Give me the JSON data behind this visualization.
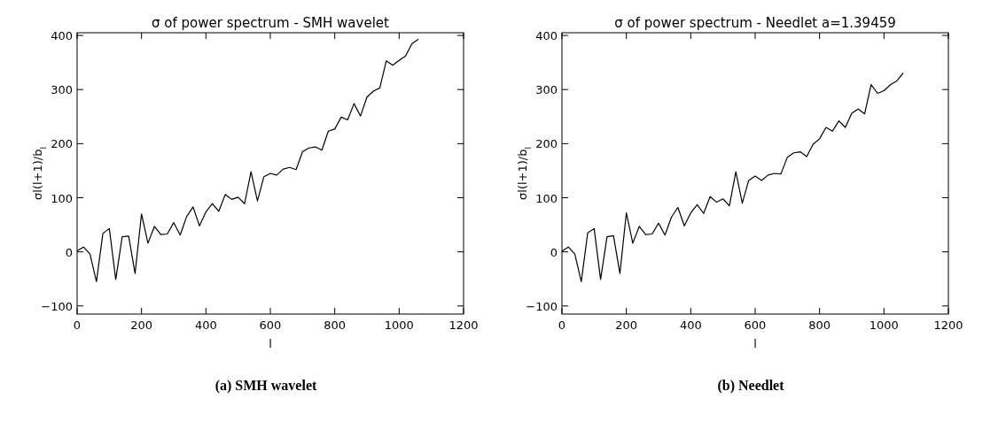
{
  "chart_data": [
    {
      "type": "line",
      "title": "σ of power spectrum - SMH wavelet",
      "xlabel": "l",
      "ylabel": "σl(l+1)/b$_{l}$",
      "annotations": [
        "(a) SMH wavelet"
      ],
      "x": [
        0,
        20,
        40,
        60,
        80,
        100,
        120,
        140,
        160,
        180,
        200,
        220,
        240,
        260,
        280,
        300,
        320,
        340,
        360,
        380,
        400,
        420,
        440,
        460,
        480,
        500,
        520,
        540,
        560,
        580,
        600,
        620,
        640,
        660,
        680,
        700,
        720,
        740,
        760,
        780,
        800,
        820,
        840,
        860,
        880,
        900,
        920,
        940,
        960,
        980,
        1000,
        1020,
        1040,
        1060
      ],
      "series": [
        {
          "color": "#000000",
          "values": [
            2,
            9,
            -4,
            -55,
            34,
            43,
            -51,
            28,
            29,
            -40,
            70,
            16,
            47,
            32,
            33,
            54,
            31,
            65,
            83,
            48,
            74,
            89,
            75,
            106,
            97,
            101,
            89,
            148,
            94,
            139,
            145,
            142,
            153,
            156,
            152,
            185,
            192,
            194,
            188,
            223,
            227,
            249,
            244,
            274,
            251,
            286,
            297,
            303,
            353,
            345,
            354,
            362,
            385,
            393
          ]
        }
      ],
      "xlim": [
        0,
        1200
      ],
      "xticks": [
        0,
        200,
        400,
        600,
        800,
        1000,
        1200
      ],
      "ylim": [
        -115,
        405
      ],
      "yticks": [
        -100,
        0,
        100,
        200,
        300,
        400
      ],
      "grid": false,
      "line_style": "solid",
      "marker": "none"
    },
    {
      "type": "line",
      "title": "σ of power spectrum - Needlet a=1.39459",
      "xlabel": "l",
      "ylabel": "σl(l+1)/b$_{l}$",
      "annotations": [
        "(b) Needlet"
      ],
      "x": [
        0,
        20,
        40,
        60,
        80,
        100,
        120,
        140,
        160,
        180,
        200,
        220,
        240,
        260,
        280,
        300,
        320,
        340,
        360,
        380,
        400,
        420,
        440,
        460,
        480,
        500,
        520,
        540,
        560,
        580,
        600,
        620,
        640,
        660,
        680,
        700,
        720,
        740,
        760,
        780,
        800,
        820,
        840,
        860,
        880,
        900,
        920,
        940,
        960,
        980,
        1000,
        1020,
        1040,
        1060
      ],
      "series": [
        {
          "color": "#000000",
          "values": [
            1,
            9,
            -4,
            -55,
            35,
            43,
            -51,
            28,
            30,
            -40,
            72,
            16,
            47,
            32,
            33,
            53,
            31,
            64,
            82,
            48,
            72,
            87,
            71,
            102,
            92,
            98,
            85,
            148,
            90,
            132,
            140,
            132,
            142,
            145,
            144,
            175,
            183,
            185,
            176,
            199,
            209,
            230,
            223,
            242,
            230,
            256,
            264,
            255,
            309,
            293,
            298,
            309,
            316,
            331
          ]
        }
      ],
      "xlim": [
        0,
        1200
      ],
      "xticks": [
        0,
        200,
        400,
        600,
        800,
        1000,
        1200
      ],
      "ylim": [
        -115,
        405
      ],
      "yticks": [
        -100,
        0,
        100,
        200,
        300,
        400
      ],
      "grid": false,
      "line_style": "solid",
      "marker": "none"
    }
  ]
}
